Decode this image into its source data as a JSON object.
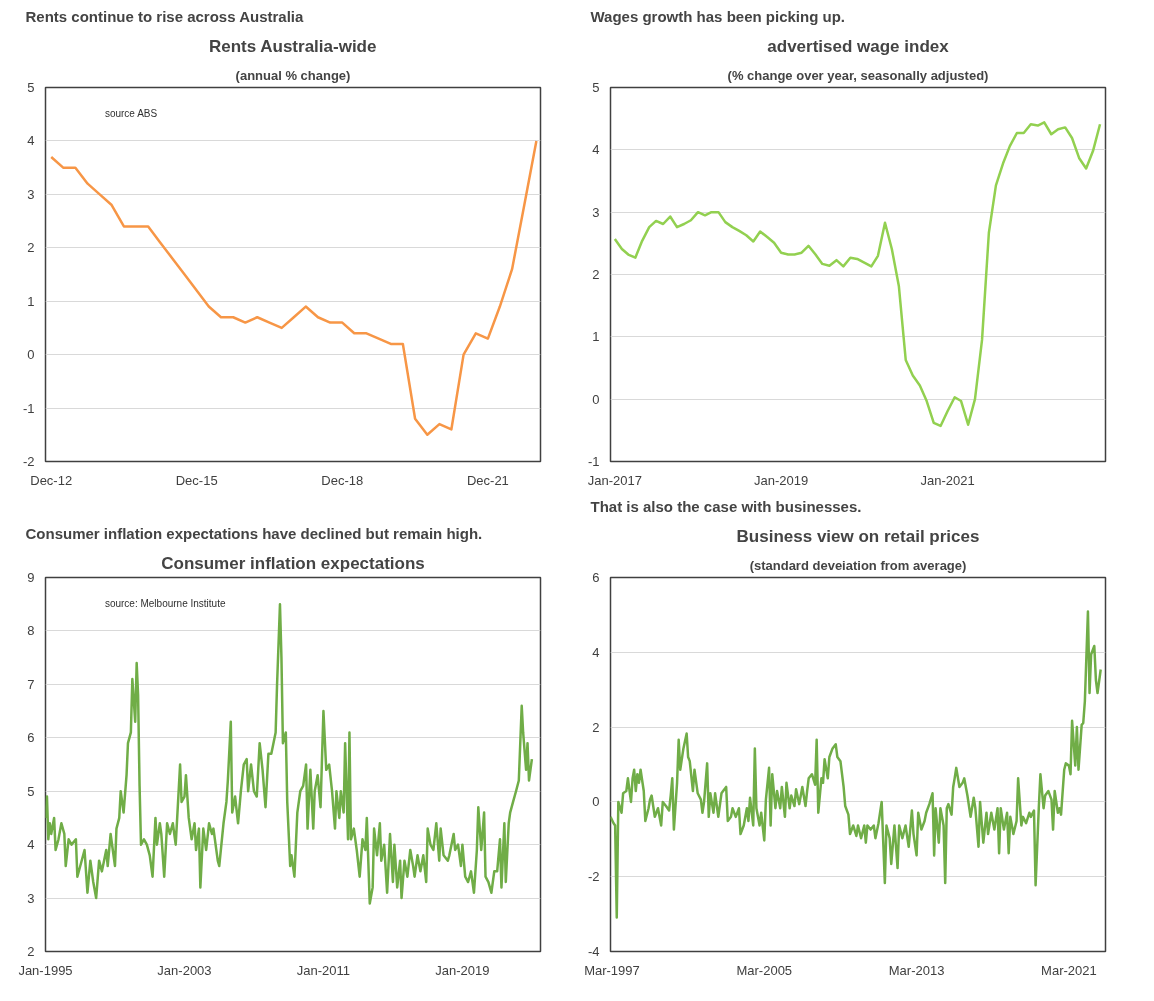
{
  "chart_data": [
    {
      "type": "line",
      "title": "Rents Australia-wide",
      "subtitle": "(annual % change)",
      "annotations": [
        "Rents continue to rise across Australia",
        "source ABS"
      ],
      "color": "#f79646",
      "grid": "y",
      "x": [
        "2012-12",
        "2013-03",
        "2013-06",
        "2013-09",
        "2013-12",
        "2014-03",
        "2014-06",
        "2014-09",
        "2014-12",
        "2015-03",
        "2015-06",
        "2015-09",
        "2015-12",
        "2016-03",
        "2016-06",
        "2016-09",
        "2016-12",
        "2017-03",
        "2017-06",
        "2017-09",
        "2017-12",
        "2018-03",
        "2018-06",
        "2018-09",
        "2018-12",
        "2019-03",
        "2019-06",
        "2019-09",
        "2019-12",
        "2020-03",
        "2020-06",
        "2020-09",
        "2020-12",
        "2021-03",
        "2021-06",
        "2021-09",
        "2021-12",
        "2022-03",
        "2022-06",
        "2022-09",
        "2022-12"
      ],
      "values": [
        3.7,
        3.5,
        3.5,
        3.2,
        3.0,
        2.8,
        2.4,
        2.4,
        2.4,
        2.1,
        1.8,
        1.5,
        1.2,
        0.9,
        0.7,
        0.7,
        0.6,
        0.7,
        0.6,
        0.5,
        0.7,
        0.9,
        0.7,
        0.6,
        0.6,
        0.4,
        0.4,
        0.3,
        0.2,
        0.2,
        -1.2,
        -1.5,
        -1.3,
        -1.4,
        0.0,
        0.4,
        0.3,
        0.9,
        1.6,
        2.8,
        4.0
      ],
      "xlim": [
        "2012-10-19",
        "2023-01-01"
      ],
      "ylim": [
        -2,
        5
      ],
      "yticks": [
        -2,
        -1,
        0,
        1,
        2,
        3,
        4,
        5
      ],
      "xticks": [
        {
          "value": "2012-12",
          "label": "Dec-12"
        },
        {
          "value": "2015-12",
          "label": "Dec-15"
        },
        {
          "value": "2018-12",
          "label": "Dec-18"
        },
        {
          "value": "2021-12",
          "label": "Dec-21"
        }
      ]
    },
    {
      "type": "line",
      "title": "advertised wage index",
      "subtitle": "(% change over year, seasonally adjusted)",
      "annotations": [
        "Wages growth has been picking up."
      ],
      "color": "#92d050",
      "grid": "y",
      "x": [
        "2017-01",
        "2017-02",
        "2017-03",
        "2017-04",
        "2017-05",
        "2017-06",
        "2017-07",
        "2017-08",
        "2017-09",
        "2017-10",
        "2017-11",
        "2017-12",
        "2018-01",
        "2018-02",
        "2018-03",
        "2018-04",
        "2018-05",
        "2018-06",
        "2018-07",
        "2018-08",
        "2018-09",
        "2018-10",
        "2018-11",
        "2018-12",
        "2019-01",
        "2019-02",
        "2019-03",
        "2019-04",
        "2019-05",
        "2019-06",
        "2019-07",
        "2019-08",
        "2019-09",
        "2019-10",
        "2019-11",
        "2019-12",
        "2020-01",
        "2020-02",
        "2020-03",
        "2020-04",
        "2020-05",
        "2020-06",
        "2020-07",
        "2020-08",
        "2020-09",
        "2020-10",
        "2020-11",
        "2020-12",
        "2021-01",
        "2021-02",
        "2021-03",
        "2021-04",
        "2021-05",
        "2021-06",
        "2021-07",
        "2021-08",
        "2021-09",
        "2021-10",
        "2021-11",
        "2021-12",
        "2022-01",
        "2022-02",
        "2022-03",
        "2022-04",
        "2022-05",
        "2022-06",
        "2022-07",
        "2022-08",
        "2022-09",
        "2022-10",
        "2022-11"
      ],
      "values": [
        2.57,
        2.41,
        2.32,
        2.27,
        2.54,
        2.76,
        2.86,
        2.81,
        2.93,
        2.76,
        2.81,
        2.87,
        3.0,
        2.95,
        3.0,
        3.0,
        2.84,
        2.76,
        2.7,
        2.63,
        2.53,
        2.69,
        2.6,
        2.51,
        2.35,
        2.32,
        2.32,
        2.35,
        2.46,
        2.32,
        2.17,
        2.14,
        2.23,
        2.13,
        2.27,
        2.25,
        2.19,
        2.13,
        2.3,
        2.83,
        2.41,
        1.81,
        0.63,
        0.38,
        0.22,
        -0.03,
        -0.38,
        -0.43,
        -0.19,
        0.03,
        -0.03,
        -0.41,
        0.0,
        0.95,
        2.67,
        3.43,
        3.78,
        4.06,
        4.27,
        4.27,
        4.41,
        4.39,
        4.44,
        4.25,
        4.33,
        4.36,
        4.19,
        3.87,
        3.7,
        3.98,
        4.41
      ],
      "xlim": [
        "2016-12-13",
        "2022-11-25"
      ],
      "ylim": [
        -1,
        5
      ],
      "yticks": [
        -1,
        0,
        1,
        2,
        3,
        4,
        5
      ],
      "xticks": [
        {
          "value": "2017-01",
          "label": "Jan-2017"
        },
        {
          "value": "2019-01",
          "label": "Jan-2019"
        },
        {
          "value": "2021-01",
          "label": "Jan-2021"
        }
      ]
    },
    {
      "type": "line",
      "title": "Consumer inflation expectations",
      "annotations": [
        "Consumer inflation expectations have declined but remain high.",
        "source:  Melbourne Institute"
      ],
      "color": "#70ad47",
      "grid": "y",
      "x": [
        "1995-01",
        "1995-02",
        "1995-03",
        "1995-04",
        "1995-05",
        "1995-07",
        "1995-08",
        "1995-10",
        "1995-12",
        "1996-02",
        "1996-03",
        "1996-05",
        "1996-07",
        "1996-10",
        "1996-11",
        "1997-01",
        "1997-04",
        "1997-06",
        "1997-08",
        "1997-10",
        "1997-12",
        "1998-02",
        "1998-04",
        "1998-07",
        "1998-08",
        "1998-10",
        "1999-01",
        "1999-02",
        "1999-04",
        "1999-05",
        "1999-07",
        "1999-09",
        "1999-10",
        "1999-12",
        "2000-01",
        "2000-03",
        "2000-04",
        "2000-05",
        "2000-06",
        "2000-07",
        "2000-09",
        "2000-11",
        "2001-01",
        "2001-03",
        "2001-05",
        "2001-06",
        "2001-08",
        "2001-09",
        "2001-11",
        "2002-01",
        "2002-03",
        "2002-05",
        "2002-07",
        "2002-10",
        "2002-11",
        "2003-01",
        "2003-02",
        "2003-04",
        "2003-06",
        "2003-08",
        "2003-09",
        "2003-11",
        "2003-12",
        "2004-02",
        "2004-04",
        "2004-06",
        "2004-08",
        "2004-09",
        "2004-12",
        "2005-01",
        "2005-04",
        "2005-06",
        "2005-07",
        "2005-09",
        "2005-10",
        "2005-12",
        "2006-02",
        "2006-04",
        "2006-06",
        "2006-08",
        "2006-09",
        "2006-11",
        "2007-01",
        "2007-03",
        "2007-05",
        "2007-07",
        "2007-09",
        "2007-11",
        "2008-01",
        "2008-04",
        "2008-05",
        "2008-07",
        "2008-08",
        "2008-09",
        "2008-11",
        "2008-12",
        "2009-02",
        "2009-03",
        "2009-05",
        "2009-07",
        "2009-09",
        "2009-11",
        "2010-01",
        "2010-02",
        "2010-04",
        "2010-06",
        "2010-07",
        "2010-09",
        "2010-11",
        "2011-01",
        "2011-03",
        "2011-05",
        "2011-07",
        "2011-09",
        "2011-10",
        "2011-12",
        "2012-01",
        "2012-03",
        "2012-04",
        "2012-06",
        "2012-07",
        "2012-08",
        "2012-10",
        "2012-12",
        "2013-02",
        "2013-04",
        "2013-06",
        "2013-07",
        "2013-09",
        "2013-11",
        "2013-12",
        "2014-02",
        "2014-04",
        "2014-05",
        "2014-07",
        "2014-09",
        "2014-11",
        "2015-01",
        "2015-02",
        "2015-04",
        "2015-06",
        "2015-07",
        "2015-09",
        "2015-11",
        "2016-01",
        "2016-03",
        "2016-04",
        "2016-06",
        "2016-08",
        "2016-10",
        "2016-12",
        "2017-01",
        "2017-03",
        "2017-05",
        "2017-07",
        "2017-09",
        "2017-10",
        "2017-12",
        "2018-03",
        "2018-04",
        "2018-07",
        "2018-08",
        "2018-10",
        "2018-12",
        "2019-01",
        "2019-03",
        "2019-05",
        "2019-07",
        "2019-09",
        "2019-11",
        "2019-12",
        "2020-02",
        "2020-04",
        "2020-05",
        "2020-07",
        "2020-09",
        "2020-11",
        "2021-01",
        "2021-03",
        "2021-04",
        "2021-06",
        "2021-07",
        "2021-09",
        "2021-10",
        "2021-12",
        "2022-02",
        "2022-04",
        "2022-06",
        "2022-07",
        "2022-09",
        "2022-10",
        "2022-11",
        "2023-01"
      ],
      "values": [
        4.5,
        4.9,
        4.1,
        4.4,
        4.2,
        4.5,
        3.9,
        4.1,
        4.4,
        4.2,
        3.6,
        4.1,
        4.0,
        4.1,
        3.4,
        3.6,
        3.9,
        3.1,
        3.7,
        3.3,
        3.0,
        3.7,
        3.5,
        3.9,
        3.6,
        4.2,
        3.6,
        4.3,
        4.5,
        5.0,
        4.6,
        5.3,
        5.9,
        6.1,
        7.1,
        6.3,
        7.4,
        6.8,
        5.1,
        4.0,
        4.1,
        4.0,
        3.8,
        3.4,
        4.5,
        4.0,
        4.4,
        4.2,
        3.4,
        4.4,
        4.2,
        4.4,
        4.0,
        5.5,
        4.8,
        4.9,
        5.3,
        4.5,
        4.1,
        4.4,
        3.9,
        4.3,
        3.2,
        4.3,
        3.9,
        4.4,
        4.2,
        4.3,
        3.7,
        3.6,
        4.4,
        4.8,
        5.2,
        6.3,
        4.6,
        4.9,
        4.4,
        5.0,
        5.5,
        5.6,
        5.0,
        5.5,
        5.0,
        4.9,
        5.9,
        5.4,
        4.7,
        5.7,
        5.7,
        6.1,
        7.0,
        8.5,
        7.5,
        5.9,
        6.1,
        4.8,
        3.6,
        3.8,
        3.4,
        4.6,
        5.0,
        5.1,
        5.5,
        4.3,
        5.4,
        4.3,
        5.0,
        5.3,
        4.7,
        6.5,
        5.4,
        5.5,
        5.0,
        4.3,
        5.0,
        4.5,
        5.0,
        4.6,
        5.9,
        4.1,
        6.1,
        4.1,
        4.3,
        3.9,
        3.4,
        4.1,
        3.9,
        4.5,
        2.9,
        3.2,
        4.3,
        3.8,
        4.4,
        3.7,
        4.0,
        3.1,
        4.2,
        3.3,
        4.0,
        3.2,
        3.7,
        3.0,
        3.7,
        3.4,
        3.9,
        3.6,
        3.4,
        3.8,
        3.5,
        3.8,
        3.3,
        4.3,
        4.0,
        3.9,
        4.4,
        3.7,
        4.3,
        3.8,
        3.7,
        3.8,
        4.2,
        3.9,
        4.0,
        3.6,
        4.0,
        3.4,
        3.3,
        3.5,
        3.1,
        3.9,
        4.7,
        3.9,
        4.6,
        3.4,
        3.3,
        3.1,
        3.5,
        3.5,
        4.1,
        3.2,
        4.4,
        3.3,
        4.4,
        4.6,
        4.8,
        5.0,
        5.2,
        6.6,
        6.1,
        5.4,
        5.9,
        5.2,
        5.6
      ],
      "xlim": [
        "1995-01",
        "2023-07"
      ],
      "ylim": [
        2,
        9
      ],
      "yticks": [
        2,
        3,
        4,
        5,
        6,
        7,
        8,
        9
      ],
      "xticks": [
        {
          "value": "1995-01",
          "label": "Jan-1995"
        },
        {
          "value": "2003-01",
          "label": "Jan-2003"
        },
        {
          "value": "2011-01",
          "label": "Jan-2011"
        },
        {
          "value": "2019-01",
          "label": "Jan-2019"
        }
      ]
    },
    {
      "type": "line",
      "title": "Business view on retail prices",
      "subtitle": "(standard deveiation from average)",
      "annotations": [
        "That is also the case with businesses."
      ],
      "color": "#70ad47",
      "grid": "y",
      "x": [
        "1997-02",
        "1997-04",
        "1997-05",
        "1997-06",
        "1997-07",
        "1997-09",
        "1997-10",
        "1997-12",
        "1998-01",
        "1998-03",
        "1998-04",
        "1998-05",
        "1998-06",
        "1998-07",
        "1998-08",
        "1998-09",
        "1998-11",
        "1998-12",
        "1999-02",
        "1999-03",
        "1999-04",
        "1999-06",
        "1999-08",
        "1999-10",
        "1999-11",
        "2000-01",
        "2000-03",
        "2000-04",
        "2000-05",
        "2000-06",
        "2000-08",
        "2000-09",
        "2000-10",
        "2000-12",
        "2001-02",
        "2001-03",
        "2001-04",
        "2001-06",
        "2001-07",
        "2001-09",
        "2001-11",
        "2001-12",
        "2002-01",
        "2002-03",
        "2002-04",
        "2002-05",
        "2002-07",
        "2002-08",
        "2002-10",
        "2002-12",
        "2003-01",
        "2003-03",
        "2003-04",
        "2003-06",
        "2003-07",
        "2003-09",
        "2003-11",
        "2003-12",
        "2004-02",
        "2004-04",
        "2004-05",
        "2004-06",
        "2004-08",
        "2004-09",
        "2004-10",
        "2004-12",
        "2005-01",
        "2005-03",
        "2005-04",
        "2005-06",
        "2005-07",
        "2005-08",
        "2005-10",
        "2005-11",
        "2006-01",
        "2006-02",
        "2006-04",
        "2006-05",
        "2006-07",
        "2006-08",
        "2006-10",
        "2006-11",
        "2007-01",
        "2007-03",
        "2007-05",
        "2007-06",
        "2007-07",
        "2007-09",
        "2007-11",
        "2007-12",
        "2008-01",
        "2008-03",
        "2008-04",
        "2008-05",
        "2008-07",
        "2008-08",
        "2008-10",
        "2008-12",
        "2009-01",
        "2009-03",
        "2009-05",
        "2009-06",
        "2009-08",
        "2009-09",
        "2009-11",
        "2010-01",
        "2010-02",
        "2010-04",
        "2010-06",
        "2010-07",
        "2010-08",
        "2010-10",
        "2010-12",
        "2011-01",
        "2011-03",
        "2011-05",
        "2011-07",
        "2011-08",
        "2011-10",
        "2011-11",
        "2012-01",
        "2012-03",
        "2012-04",
        "2012-06",
        "2012-08",
        "2012-10",
        "2012-12",
        "2013-01",
        "2013-03",
        "2013-04",
        "2013-06",
        "2013-08",
        "2013-09",
        "2013-11",
        "2014-01",
        "2014-02",
        "2014-03",
        "2014-05",
        "2014-06",
        "2014-08",
        "2014-09",
        "2014-10",
        "2014-11",
        "2015-01",
        "2015-02",
        "2015-03",
        "2015-04",
        "2015-06",
        "2015-08",
        "2015-09",
        "2015-11",
        "2016-01",
        "2016-03",
        "2016-04",
        "2016-06",
        "2016-07",
        "2016-09",
        "2016-11",
        "2016-12",
        "2017-02",
        "2017-04",
        "2017-06",
        "2017-07",
        "2017-08",
        "2017-10",
        "2017-12",
        "2018-01",
        "2018-02",
        "2018-04",
        "2018-06",
        "2018-07",
        "2018-09",
        "2018-10",
        "2018-12",
        "2019-02",
        "2019-03",
        "2019-05",
        "2019-06",
        "2019-08",
        "2019-09",
        "2019-11",
        "2019-12",
        "2020-02",
        "2020-04",
        "2020-05",
        "2020-06",
        "2020-08",
        "2020-09",
        "2020-10",
        "2020-12",
        "2021-01",
        "2021-03",
        "2021-04",
        "2021-05",
        "2021-07",
        "2021-08",
        "2021-09",
        "2021-11",
        "2021-12",
        "2022-01",
        "2022-03",
        "2022-04",
        "2022-05",
        "2022-07",
        "2022-08",
        "2022-09",
        "2022-11"
      ],
      "values": [
        -0.4,
        -0.57,
        -0.63,
        -3.09,
        0.0,
        -0.29,
        0.23,
        0.29,
        0.63,
        0.0,
        0.63,
        0.86,
        0.29,
        0.74,
        0.51,
        0.86,
        0.29,
        -0.51,
        -0.17,
        0.06,
        0.17,
        -0.4,
        -0.17,
        -0.63,
        0.0,
        -0.11,
        -0.23,
        0.17,
        0.63,
        -0.74,
        0.51,
        1.66,
        0.86,
        1.43,
        1.83,
        1.2,
        1.09,
        0.29,
        0.86,
        0.23,
        0.06,
        -0.29,
        0.0,
        1.03,
        -0.4,
        0.23,
        -0.29,
        0.23,
        -0.4,
        0.23,
        0.29,
        0.4,
        -0.51,
        -0.4,
        -0.17,
        -0.4,
        -0.17,
        -0.86,
        -0.63,
        -0.17,
        -0.51,
        0.11,
        -0.63,
        1.43,
        -0.17,
        -0.63,
        -0.29,
        -1.03,
        0.06,
        0.91,
        -0.63,
        0.74,
        -0.17,
        0.29,
        -0.17,
        0.4,
        -0.4,
        0.51,
        -0.17,
        0.17,
        -0.11,
        0.34,
        -0.06,
        0.4,
        -0.11,
        0.29,
        0.63,
        0.74,
        0.46,
        1.66,
        -0.29,
        0.63,
        0.51,
        1.14,
        0.63,
        1.2,
        1.43,
        1.54,
        1.2,
        1.09,
        0.4,
        -0.11,
        -0.34,
        -0.86,
        -0.63,
        -0.91,
        -0.63,
        -0.97,
        -0.63,
        -1.09,
        -0.63,
        -0.74,
        -0.63,
        -0.97,
        -0.57,
        0.0,
        -2.17,
        -0.63,
        -0.97,
        -1.66,
        -0.63,
        -1.77,
        -0.63,
        -0.97,
        -0.63,
        -1.2,
        -0.23,
        -0.86,
        -1.43,
        -0.29,
        -0.74,
        -0.51,
        -0.29,
        -0.06,
        0.23,
        -1.43,
        -0.17,
        -1.09,
        -0.17,
        -0.63,
        -2.17,
        -0.17,
        -0.06,
        -0.34,
        0.4,
        0.63,
        0.91,
        0.4,
        0.51,
        0.63,
        0.17,
        -0.4,
        0.11,
        -0.17,
        -1.2,
        0.0,
        -1.09,
        -0.29,
        -0.86,
        -0.29,
        -0.74,
        -0.17,
        -1.37,
        -0.17,
        -0.74,
        -0.29,
        -1.37,
        -0.4,
        -0.86,
        -0.51,
        0.63,
        -0.63,
        -0.4,
        -0.57,
        -0.29,
        -0.4,
        -0.23,
        -2.23,
        -0.17,
        0.74,
        -0.17,
        0.17,
        0.29,
        0.06,
        -0.74,
        0.29,
        -0.29,
        -0.17,
        -0.34,
        0.86,
        1.03,
        0.97,
        0.74,
        2.17,
        0.97,
        2.0,
        0.86,
        2.06,
        2.11,
        2.69,
        5.09,
        2.91,
        3.94,
        4.17,
        3.26,
        2.91,
        3.54
      ],
      "xlim": [
        "1997-02",
        "2023-02"
      ],
      "ylim": [
        -4,
        6
      ],
      "yticks": [
        -4,
        -2,
        0,
        2,
        4,
        6
      ],
      "xticks": [
        {
          "value": "1997-03",
          "label": "Mar-1997"
        },
        {
          "value": "2005-03",
          "label": "Mar-2005"
        },
        {
          "value": "2013-03",
          "label": "Mar-2013"
        },
        {
          "value": "2021-03",
          "label": "Mar-2021"
        }
      ]
    }
  ]
}
